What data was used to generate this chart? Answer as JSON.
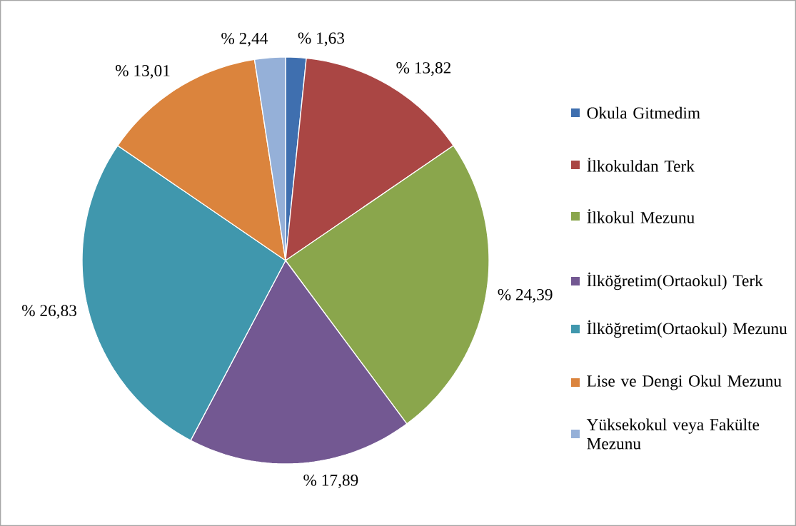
{
  "chart_data": {
    "type": "pie",
    "categories": [
      "Okula Gitmedim",
      "İlkokuldan Terk",
      "İlkokul Mezunu",
      "İlköğretim(Ortaokul) Terk",
      "İlköğretim(Ortaokul) Mezunu",
      "Lise ve Dengi Okul Mezunu",
      "Yüksekokul veya Fakülte Mezunu"
    ],
    "values": [
      1.63,
      13.82,
      24.39,
      17.89,
      26.83,
      13.01,
      2.44
    ],
    "value_labels": [
      "% 1,63",
      "% 13,82",
      "% 24,39",
      "% 17,89",
      "% 26,83",
      "% 13,01",
      "% 2,44"
    ],
    "colors": [
      "#3f6faf",
      "#aa4644",
      "#8aa64c",
      "#735892",
      "#4097ad",
      "#db843d",
      "#95b0d8"
    ],
    "legend": "right"
  }
}
